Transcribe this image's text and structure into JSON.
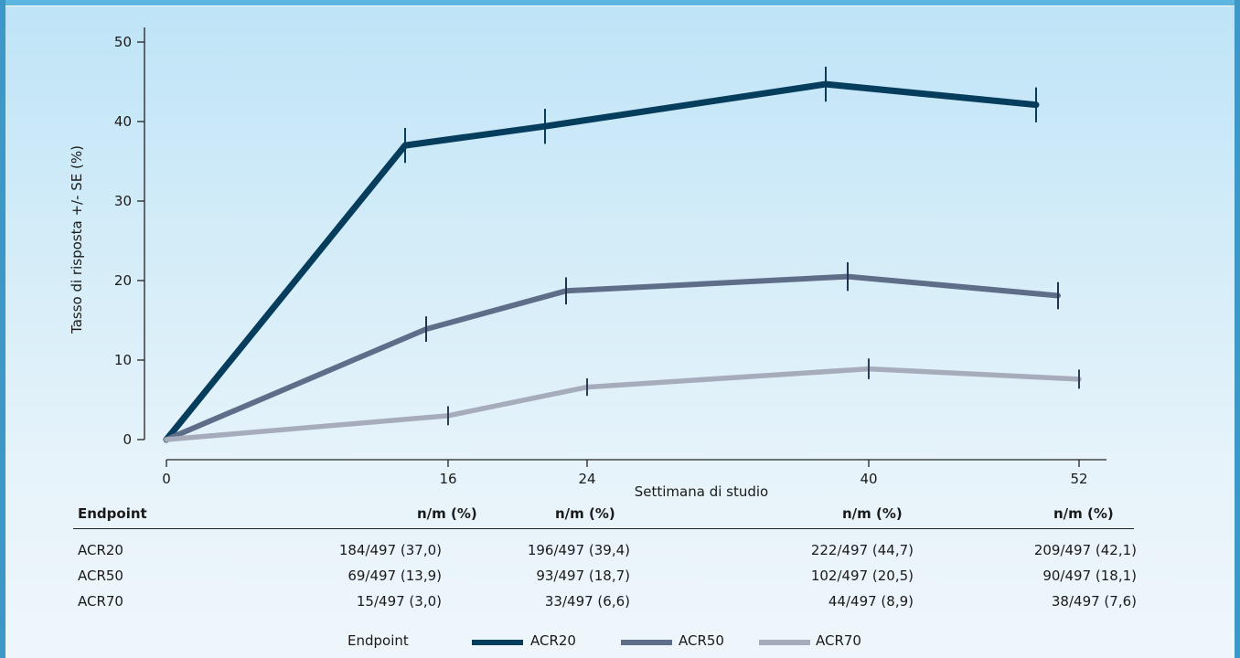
{
  "chart_data": {
    "type": "line",
    "xlabel": "Settimana di studio",
    "ylabel": "Tasso di risposta +/- SE (%)",
    "x_ticks": [
      0,
      16,
      24,
      40,
      52
    ],
    "y_ticks": [
      0,
      10,
      20,
      30,
      40,
      50
    ],
    "ylim": [
      0,
      50
    ],
    "grid": false,
    "series": [
      {
        "name": "ACR20",
        "color": "#073d5c",
        "points": [
          {
            "x": 0,
            "y": 0,
            "se": 0
          },
          {
            "x": 16,
            "y": 37.0,
            "se": 2.2
          },
          {
            "x": 24,
            "y": 39.4,
            "se": 2.2
          },
          {
            "x": 40,
            "y": 44.7,
            "se": 2.2
          },
          {
            "x": 52,
            "y": 42.1,
            "se": 2.2
          }
        ]
      },
      {
        "name": "ACR50",
        "color": "#5e6e89",
        "points": [
          {
            "x": 0,
            "y": 0,
            "se": 0
          },
          {
            "x": 16,
            "y": 13.9,
            "se": 1.6
          },
          {
            "x": 24,
            "y": 18.7,
            "se": 1.7
          },
          {
            "x": 40,
            "y": 20.5,
            "se": 1.8
          },
          {
            "x": 52,
            "y": 18.1,
            "se": 1.7
          }
        ]
      },
      {
        "name": "ACR70",
        "color": "#a6acbc",
        "points": [
          {
            "x": 0,
            "y": 0,
            "se": 0
          },
          {
            "x": 16,
            "y": 3.0,
            "se": 1.2
          },
          {
            "x": 24,
            "y": 6.6,
            "se": 1.1
          },
          {
            "x": 40,
            "y": 8.9,
            "se": 1.3
          },
          {
            "x": 52,
            "y": 7.6,
            "se": 1.2
          }
        ]
      }
    ]
  },
  "table": {
    "header": {
      "endpoint": "Endpoint",
      "cols": [
        "n/m (%)",
        "n/m (%)",
        "n/m (%)",
        "n/m (%)"
      ]
    },
    "rows": [
      {
        "label": "ACR20",
        "cells": [
          "184/497 (37,0)",
          "196/497 (39,4)",
          "222/497 (44,7)",
          "209/497 (42,1)"
        ]
      },
      {
        "label": "ACR50",
        "cells": [
          "69/497 (13,9)",
          "93/497 (18,7)",
          "102/497 (20,5)",
          "90/497 (18,1)"
        ]
      },
      {
        "label": "ACR70",
        "cells": [
          "15/497 (3,0)",
          "33/497 (6,6)",
          "44/497 (8,9)",
          "38/497 (7,6)"
        ]
      }
    ]
  },
  "legend": {
    "title": "Endpoint",
    "items": [
      "ACR20",
      "ACR50",
      "ACR70"
    ]
  }
}
